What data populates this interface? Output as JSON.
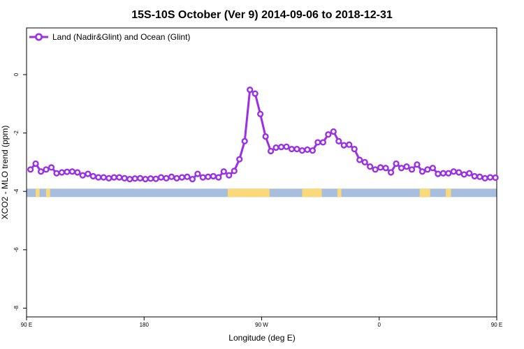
{
  "chart_data": {
    "type": "line",
    "title": "15S-10S October (Ver 9)   2014-09-06 to 2018-12-31",
    "xlabel": "Longitude (deg E)",
    "ylabel": "XCO2 - MLO trend (ppm)",
    "xlim": [
      90,
      450
    ],
    "ylim": [
      -8.3,
      1.6
    ],
    "x_ticks": [
      {
        "value": 90,
        "label": "90 E"
      },
      {
        "value": 180,
        "label": "180"
      },
      {
        "value": 270,
        "label": "90 W"
      },
      {
        "value": 360,
        "label": "0"
      },
      {
        "value": 450,
        "label": "90 E"
      }
    ],
    "y_ticks": [
      {
        "value": 0,
        "label": "0"
      },
      {
        "value": -2,
        "label": "-2"
      },
      {
        "value": -4,
        "label": "-4"
      },
      {
        "value": -6,
        "label": "-6"
      },
      {
        "value": -8,
        "label": "-8"
      }
    ],
    "grid": false,
    "legend_position": "top-left",
    "series": [
      {
        "name": "Land (Nadir&Glint) and Ocean (Glint)",
        "color": "#9b2fe6",
        "x": [
          93,
          97,
          101,
          105,
          109,
          113,
          117,
          121,
          125,
          129,
          133,
          137,
          141,
          145,
          149,
          153,
          157,
          161,
          165,
          169,
          173,
          177,
          181,
          185,
          189,
          193,
          197,
          201,
          205,
          209,
          213,
          217,
          221,
          225,
          229,
          233,
          237,
          241,
          245,
          249,
          253,
          257,
          261,
          265,
          269,
          273,
          277,
          281,
          285,
          289,
          293,
          297,
          301,
          305,
          309,
          313,
          317,
          321,
          325,
          329,
          333,
          337,
          341,
          345,
          349,
          353,
          357,
          361,
          365,
          369,
          373,
          377,
          381,
          385,
          389,
          393,
          397,
          401,
          405,
          409,
          413,
          417,
          421,
          425,
          429,
          433,
          437,
          441,
          445,
          449
        ],
        "y": [
          -3.25,
          -3.05,
          -3.32,
          -3.25,
          -3.18,
          -3.38,
          -3.35,
          -3.33,
          -3.32,
          -3.35,
          -3.45,
          -3.4,
          -3.48,
          -3.52,
          -3.52,
          -3.55,
          -3.52,
          -3.52,
          -3.55,
          -3.58,
          -3.56,
          -3.55,
          -3.58,
          -3.56,
          -3.57,
          -3.52,
          -3.55,
          -3.5,
          -3.55,
          -3.52,
          -3.5,
          -3.58,
          -3.4,
          -3.52,
          -3.5,
          -3.48,
          -3.52,
          -3.32,
          -3.45,
          -3.3,
          -2.9,
          -2.28,
          -0.52,
          -0.65,
          -1.35,
          -2.12,
          -2.62,
          -2.5,
          -2.48,
          -2.47,
          -2.55,
          -2.55,
          -2.6,
          -2.57,
          -2.6,
          -2.32,
          -2.32,
          -2.05,
          -1.95,
          -2.28,
          -2.42,
          -2.4,
          -2.55,
          -2.92,
          -3.0,
          -3.15,
          -3.25,
          -3.18,
          -3.2,
          -3.35,
          -3.05,
          -3.2,
          -3.15,
          -3.25,
          -3.08,
          -3.32,
          -3.25,
          -3.2,
          -3.4,
          -3.38,
          -3.38,
          -3.32,
          -3.35,
          -3.42,
          -3.38,
          -3.48,
          -3.5,
          -3.55,
          -3.52,
          -3.53
        ]
      }
    ],
    "surface_strip": {
      "y_value": -4.05,
      "ocean_color": "#a7bedc",
      "land_color": "#f9d97a",
      "land_segments": [
        [
          97,
          100
        ],
        [
          105,
          108
        ],
        [
          244,
          276
        ],
        [
          301,
          316
        ],
        [
          328,
          331
        ],
        [
          391,
          399
        ],
        [
          411,
          415
        ]
      ]
    }
  }
}
